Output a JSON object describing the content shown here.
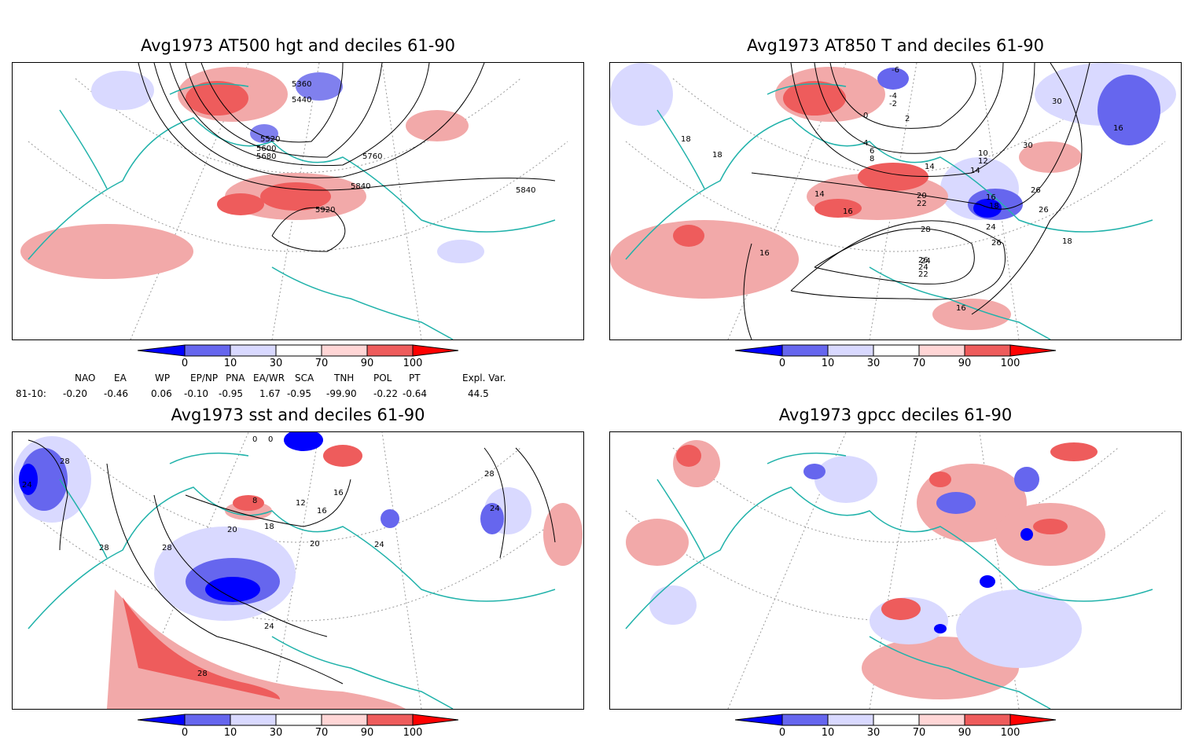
{
  "panels": [
    {
      "title": "Avg1973 AT500 hgt and deciles 61-90",
      "contour_labels": [
        "5360",
        "5440",
        "5520",
        "5600",
        "5680",
        "5760",
        "5840",
        "5840",
        "5920"
      ]
    },
    {
      "title": "Avg1973 AT850 T and deciles 61-90",
      "contour_labels": [
        "-6",
        "-4",
        "-2",
        "0",
        "2",
        "4",
        "6",
        "8",
        "10",
        "12",
        "14",
        "14",
        "14",
        "16",
        "16",
        "16",
        "16",
        "16",
        "18",
        "18",
        "18",
        "18",
        "20",
        "22",
        "24",
        "24",
        "26",
        "26",
        "26",
        "28",
        "30",
        "30",
        "22",
        "24",
        "26"
      ]
    },
    {
      "title": "Avg1973 sst and deciles 61-90",
      "contour_labels": [
        "24",
        "28",
        "28",
        "28",
        "8",
        "12",
        "16",
        "16",
        "18",
        "20",
        "20",
        "24",
        "24",
        "24",
        "28",
        "28",
        "0",
        "0"
      ]
    },
    {
      "title": "Avg1973 gpcc deciles 61-90",
      "contour_labels": []
    }
  ],
  "colorbar": {
    "ticks": [
      "0",
      "10",
      "30",
      "70",
      "90",
      "100"
    ],
    "colors": [
      "#0000ff",
      "#6666ee",
      "#d9d9ff",
      "#ffffff",
      "#ffd6d6",
      "#ee5c5c",
      "#ff0000"
    ]
  },
  "indices": {
    "headers": [
      "NAO",
      "EA",
      "WP",
      "EP/NP",
      "PNA",
      "EA/WR",
      "SCA",
      "TNH",
      "POL",
      "PT",
      "Expl. Var."
    ],
    "row_label": "81-10:",
    "values": [
      "-0.20",
      "-0.46",
      "0.06",
      "-0.10",
      "-0.95",
      "1.67",
      "-0.95",
      "-99.90",
      "-0.22",
      "-0.64",
      "44.5"
    ]
  },
  "colors": {
    "coast": "#20b2aa",
    "contour": "#000000",
    "grid": "#999999"
  }
}
